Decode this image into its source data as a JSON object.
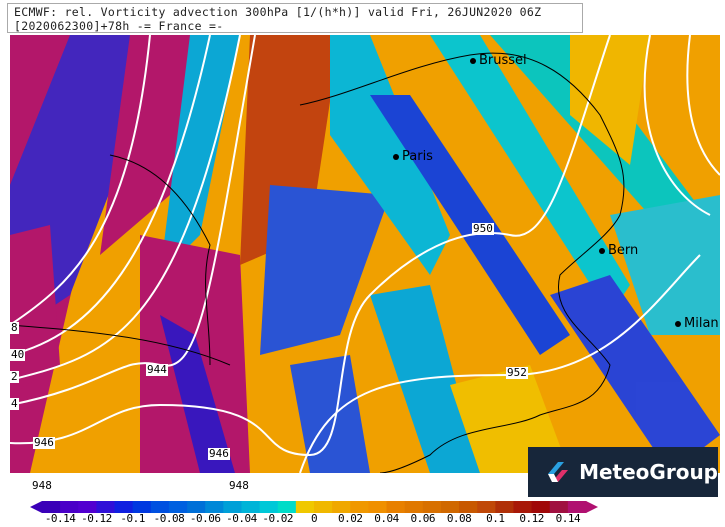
{
  "title": {
    "line1": "ECMWF: rel. Vorticity advection 300hPa [1/(h*h)] valid Fri, 26JUN2020 06Z",
    "line2": "[2020062300]+78h -= France =-"
  },
  "cities": [
    {
      "name": "Brussel"
    },
    {
      "name": "Paris"
    },
    {
      "name": "Bern"
    },
    {
      "name": "Milan"
    }
  ],
  "contour_labels": [
    "950",
    "952",
    "944",
    "946",
    "946",
    "8",
    "40",
    "2",
    "4"
  ],
  "below_labels": [
    "948",
    "948"
  ],
  "logo": {
    "text": "MeteoGroup",
    "icon": "meteogroup-logo-icon"
  },
  "colorbar": {
    "ticks": [
      "-0.14",
      "-0.12",
      "-0.1",
      "-0.08",
      "-0.06",
      "-0.04",
      "-0.02",
      "0",
      "0.02",
      "0.04",
      "0.06",
      "0.08",
      "0.1",
      "0.12",
      "0.14"
    ],
    "colors": [
      "#3a00b8",
      "#4a00c8",
      "#5200d0",
      "#3010d8",
      "#1020e0",
      "#0038e0",
      "#0050e0",
      "#0060e0",
      "#0070d8",
      "#0088d8",
      "#00a0d8",
      "#00b4d8",
      "#00c8d8",
      "#00dcc8",
      "#f0c800",
      "#f0b800",
      "#f0a800",
      "#f09800",
      "#f09000",
      "#e88000",
      "#e07800",
      "#d87000",
      "#d06800",
      "#c85800",
      "#c04808",
      "#b03008",
      "#a81808",
      "#a00808",
      "#a01040",
      "#b01070"
    ],
    "min_arrow_color": "#3a00b8",
    "max_arrow_color": "#b01070"
  }
}
